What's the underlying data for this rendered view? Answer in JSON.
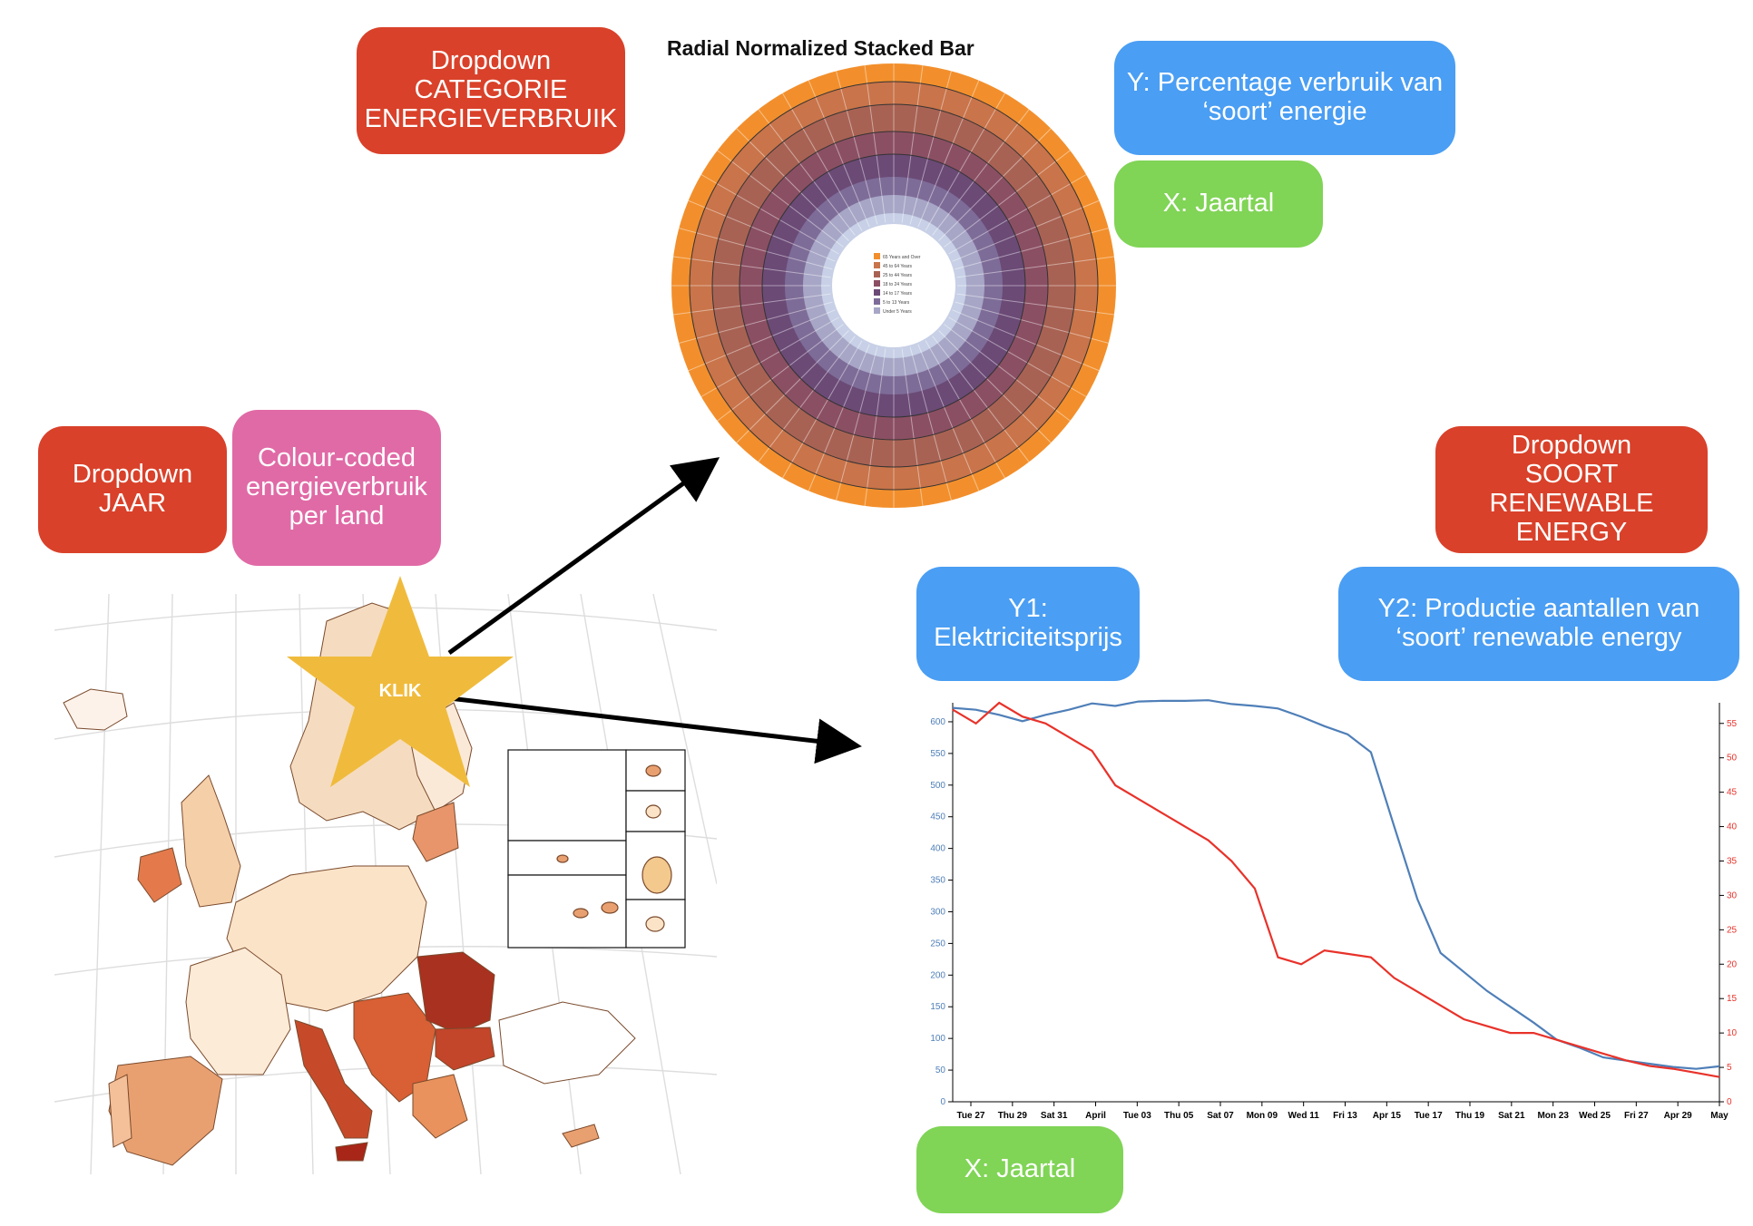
{
  "annotations": {
    "dropdown_categorie": "Dropdown\nCATEGORIE\nENERGIEVERBRUIK",
    "radial_y": "Y: Percentage verbruik van\n‘soort’ energie",
    "radial_x": "X: Jaartal",
    "dropdown_jaar": "Dropdown\nJAAR",
    "colour_coded": "Colour-coded\nenergieverbruik\nper land",
    "dropdown_soort": "Dropdown\nSOORT RENEWABLE\nENERGY",
    "line_y1": "Y1:\nElektriciteitsprijs",
    "line_y2": "Y2: Productie aantallen van\n‘soort’ renewable energy",
    "line_x": "X: Jaartal",
    "klik": "KLIK"
  },
  "radial": {
    "title": "Radial Normalized Stacked Bar",
    "legend": [
      "65 Years and Over",
      "45 to 64 Years",
      "25 to 44 Years",
      "18 to 24 Years",
      "14 to 17 Years",
      "5 to 13 Years",
      "Under 5 Years"
    ]
  },
  "colors": {
    "red_box": "#d9412a",
    "blue_box": "#4a9ef3",
    "green_box": "#80d456",
    "pink_box": "#e06aa6",
    "star": "#f0bb3c",
    "line_blue": "#4f7fb8",
    "line_red": "#e8322a",
    "radial_bands": [
      "#f28f2c",
      "#c9744a",
      "#a86253",
      "#8b4f63",
      "#6b4a76",
      "#7e6c98",
      "#a7a6c6",
      "#c7d0e6"
    ]
  },
  "chart_data": {
    "type": "line",
    "x": [
      "Tue 27",
      "Thu 29",
      "Sat 31",
      "April",
      "Tue 03",
      "Thu 05",
      "Sat 07",
      "Mon 09",
      "Wed 11",
      "Fri 13",
      "Apr 15",
      "Tue 17",
      "Thu 19",
      "Sat 21",
      "Mon 23",
      "Wed 25",
      "Fri 27",
      "Apr 29",
      "May"
    ],
    "y_left_ticks": [
      0,
      50,
      100,
      150,
      200,
      250,
      300,
      350,
      400,
      450,
      500,
      550,
      600
    ],
    "y_right_ticks": [
      0,
      5,
      10,
      15,
      20,
      25,
      30,
      35,
      40,
      45,
      50,
      55
    ],
    "ylim_left": [
      0,
      630
    ],
    "ylim_right": [
      0,
      58
    ],
    "series": [
      {
        "axis": "left",
        "color": "#4f7fb8",
        "points": [
          [
            0,
            622
          ],
          [
            1,
            619
          ],
          [
            2,
            611
          ],
          [
            3,
            601
          ],
          [
            4,
            611
          ],
          [
            5,
            619
          ],
          [
            6,
            629
          ],
          [
            7,
            625
          ],
          [
            8,
            632
          ],
          [
            9,
            633
          ],
          [
            10,
            633
          ],
          [
            11,
            634
          ],
          [
            12,
            628
          ],
          [
            13,
            625
          ],
          [
            14,
            621
          ],
          [
            15,
            608
          ],
          [
            16,
            593
          ],
          [
            17,
            580
          ],
          [
            18,
            552
          ],
          [
            19,
            435
          ],
          [
            20,
            320
          ],
          [
            21,
            235
          ],
          [
            22,
            205
          ],
          [
            23,
            175
          ],
          [
            24,
            150
          ],
          [
            25,
            125
          ],
          [
            26,
            98
          ],
          [
            27,
            85
          ],
          [
            28,
            70
          ],
          [
            29,
            65
          ],
          [
            30,
            60
          ],
          [
            31,
            55
          ],
          [
            32,
            52
          ],
          [
            33,
            56
          ]
        ]
      },
      {
        "axis": "right",
        "color": "#e8322a",
        "points": [
          [
            0,
            57
          ],
          [
            1,
            55
          ],
          [
            2,
            58
          ],
          [
            3,
            56
          ],
          [
            4,
            55
          ],
          [
            5,
            53
          ],
          [
            6,
            51
          ],
          [
            7,
            46
          ],
          [
            8,
            44
          ],
          [
            9,
            42
          ],
          [
            10,
            40
          ],
          [
            11,
            38
          ],
          [
            12,
            35
          ],
          [
            13,
            31
          ],
          [
            14,
            21
          ],
          [
            15,
            20
          ],
          [
            16,
            22
          ],
          [
            17,
            21.5
          ],
          [
            18,
            21
          ],
          [
            19,
            18
          ],
          [
            20,
            16
          ],
          [
            21,
            14
          ],
          [
            22,
            12
          ],
          [
            23,
            11
          ],
          [
            24,
            10
          ],
          [
            25,
            10
          ],
          [
            26,
            9
          ],
          [
            27,
            8
          ],
          [
            28,
            7
          ],
          [
            29,
            6
          ],
          [
            30,
            5.2
          ],
          [
            31,
            4.8
          ],
          [
            32,
            4.2
          ],
          [
            33,
            3.6
          ]
        ]
      }
    ]
  }
}
